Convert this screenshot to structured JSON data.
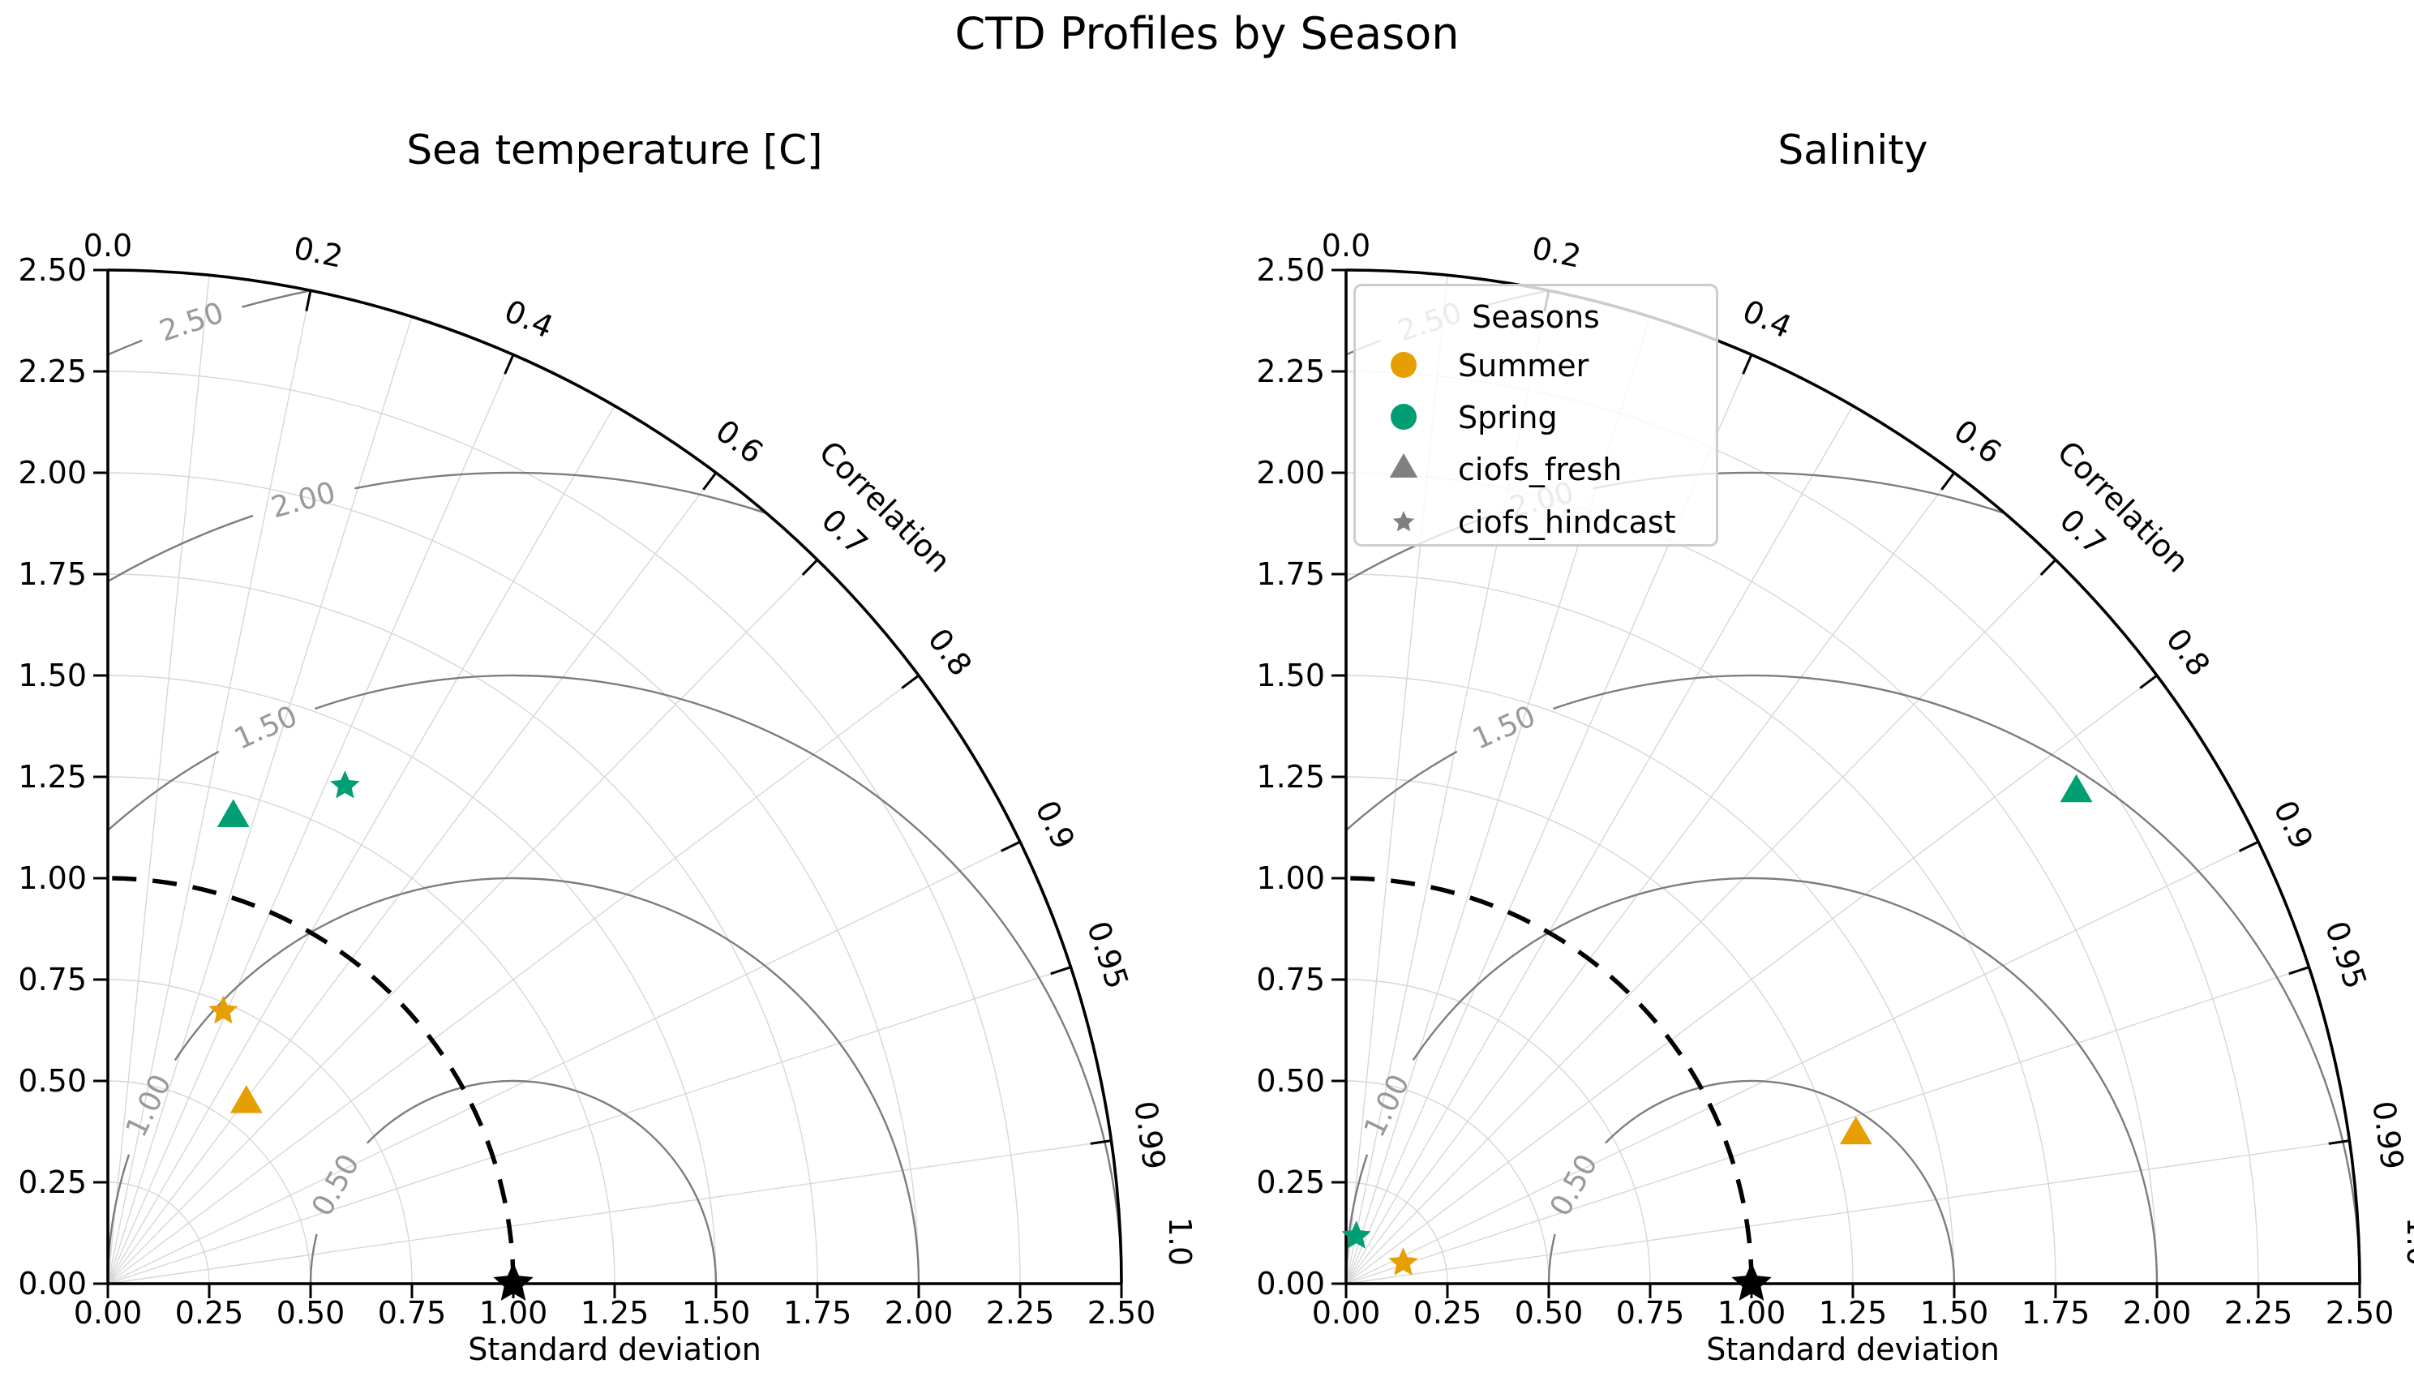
{
  "figure": {
    "title": "CTD Profiles by Season",
    "background": "#ffffff"
  },
  "legend": {
    "title": "Seasons",
    "entries": [
      {
        "label": "Summer",
        "marker": "circle",
        "color": "#E69F00"
      },
      {
        "label": "Spring",
        "marker": "circle",
        "color": "#009E73"
      },
      {
        "label": "ciofs_fresh",
        "marker": "triangle",
        "color": "#808080"
      },
      {
        "label": "ciofs_hindcast",
        "marker": "star",
        "color": "#808080"
      }
    ]
  },
  "chart_data": [
    {
      "type": "scatter",
      "variant": "taylor_diagram",
      "title": "Sea temperature [C]",
      "xlabel": "Standard deviation",
      "correlation_axis_label": "Correlation",
      "std_range": [
        0,
        2.5
      ],
      "std_ticks": [
        0,
        0.25,
        0.5,
        0.75,
        1.0,
        1.25,
        1.5,
        1.75,
        2.0,
        2.25,
        2.5
      ],
      "correlation_ticks": [
        "0.0",
        "0.2",
        "0.4",
        "0.6",
        "0.7",
        "0.8",
        "0.9",
        "0.95",
        "0.99",
        "1.0"
      ],
      "correlation_gridlines": [
        0.1,
        0.2,
        0.3,
        0.4,
        0.5,
        0.6,
        0.7,
        0.8,
        0.9,
        0.95,
        0.99
      ],
      "rms_contours": [
        0.5,
        1.0,
        1.5,
        2.0,
        2.5
      ],
      "reference": {
        "std": 1.0,
        "corr": 1.0,
        "marker": "star",
        "color": "#000000"
      },
      "reference_std_arc": 1.0,
      "points": [
        {
          "season": "Summer",
          "model": "ciofs_fresh",
          "marker": "triangle",
          "color": "#E69F00",
          "std": 0.56,
          "corr": 0.61
        },
        {
          "season": "Summer",
          "model": "ciofs_hindcast",
          "marker": "star",
          "color": "#E69F00",
          "std": 0.73,
          "corr": 0.39
        },
        {
          "season": "Spring",
          "model": "ciofs_fresh",
          "marker": "triangle",
          "color": "#009E73",
          "std": 1.19,
          "corr": 0.26
        },
        {
          "season": "Spring",
          "model": "ciofs_hindcast",
          "marker": "star",
          "color": "#009E73",
          "std": 1.36,
          "corr": 0.43
        }
      ]
    },
    {
      "type": "scatter",
      "variant": "taylor_diagram",
      "title": "Salinity",
      "xlabel": "Standard deviation",
      "correlation_axis_label": "Correlation",
      "std_range": [
        0,
        2.5
      ],
      "std_ticks": [
        0,
        0.25,
        0.5,
        0.75,
        1.0,
        1.25,
        1.5,
        1.75,
        2.0,
        2.25,
        2.5
      ],
      "correlation_ticks": [
        "0.0",
        "0.2",
        "0.4",
        "0.6",
        "0.7",
        "0.8",
        "0.9",
        "0.95",
        "0.99",
        "1.0"
      ],
      "correlation_gridlines": [
        0.1,
        0.2,
        0.3,
        0.4,
        0.5,
        0.6,
        0.7,
        0.8,
        0.9,
        0.95,
        0.99
      ],
      "rms_contours": [
        0.5,
        1.0,
        1.5,
        2.0,
        2.5
      ],
      "reference": {
        "std": 1.0,
        "corr": 1.0,
        "marker": "star",
        "color": "#000000"
      },
      "reference_std_arc": 1.0,
      "points": [
        {
          "season": "Summer",
          "model": "ciofs_fresh",
          "marker": "triangle",
          "color": "#E69F00",
          "std": 1.31,
          "corr": 0.96
        },
        {
          "season": "Summer",
          "model": "ciofs_hindcast",
          "marker": "star",
          "color": "#E69F00",
          "std": 0.15,
          "corr": 0.94
        },
        {
          "season": "Spring",
          "model": "ciofs_fresh",
          "marker": "triangle",
          "color": "#009E73",
          "std": 2.17,
          "corr": 0.83
        },
        {
          "season": "Spring",
          "model": "ciofs_hindcast",
          "marker": "star",
          "color": "#009E73",
          "std": 0.12,
          "corr": 0.21
        }
      ]
    }
  ],
  "style_colors": {
    "grid_light": "#d7d7d7",
    "rms_arc": "#7d7d7d",
    "rms_label": "#999999",
    "axis": "#000000"
  }
}
